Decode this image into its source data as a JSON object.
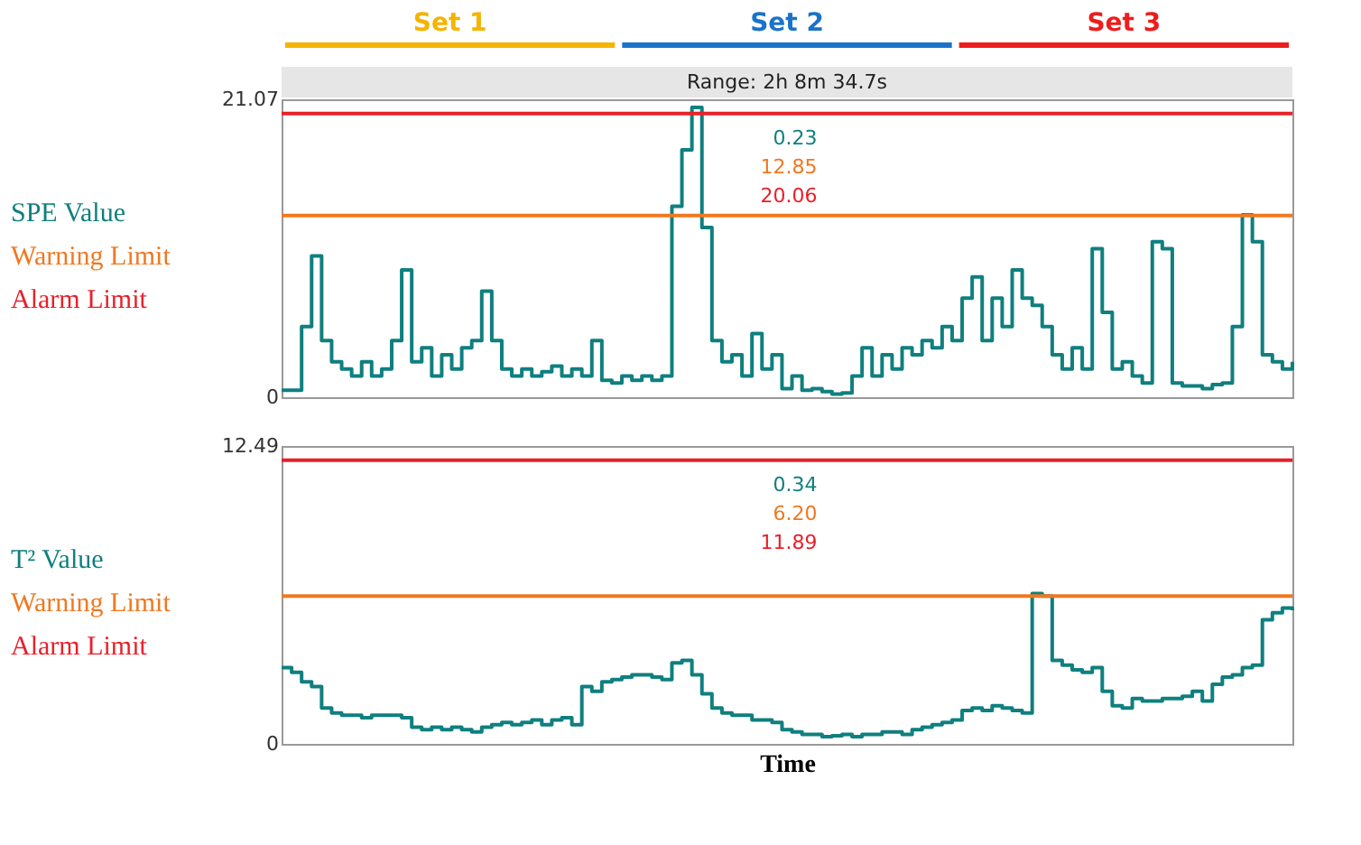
{
  "chart_data": [
    {
      "type": "step",
      "subtitle": "Range: 2h 8m 34.7s",
      "ylim": [
        0,
        21.07
      ],
      "yticks": [
        0,
        21.07
      ],
      "tick_labels": "y",
      "grid": false,
      "categories": [
        null,
        null,
        null,
        null,
        null,
        null,
        null,
        null,
        null,
        null,
        null,
        null,
        null,
        null,
        null,
        null,
        null,
        null,
        null,
        null,
        null,
        null,
        null,
        null,
        null,
        null,
        null,
        null,
        null,
        null,
        null,
        null,
        null,
        null,
        null,
        null,
        null,
        null,
        null,
        null,
        null,
        null,
        null,
        null,
        null,
        null,
        null,
        null,
        null,
        null,
        null,
        null,
        null,
        null,
        null,
        null,
        null,
        null,
        null,
        null,
        null,
        null,
        null,
        null,
        null,
        null,
        null,
        null,
        null,
        null,
        null,
        null,
        null,
        null,
        null,
        null,
        null,
        null,
        null,
        null,
        null,
        null,
        null,
        null,
        null,
        null,
        null,
        null,
        null,
        null,
        null,
        null,
        null,
        null,
        null,
        null,
        null,
        null,
        null,
        null,
        null,
        null
      ],
      "series": [
        {
          "name": "SPE Value",
          "color": "#0f7f7f",
          "values": [
            0.5,
            0.5,
            5,
            10,
            4,
            2.5,
            2,
            1.5,
            2.5,
            1.5,
            2,
            4,
            9,
            2.5,
            3.5,
            1.5,
            3,
            2,
            3.5,
            4,
            7.5,
            4,
            2,
            1.5,
            2,
            1.5,
            1.8,
            2.2,
            1.5,
            2,
            1.5,
            4,
            1.2,
            1,
            1.5,
            1.2,
            1.5,
            1.2,
            1.5,
            13.5,
            17.5,
            20.5,
            12,
            4,
            2.5,
            3,
            1.5,
            4.5,
            2,
            3,
            0.6,
            1.5,
            0.5,
            0.6,
            0.4,
            0.23,
            0.3,
            1.5,
            3.5,
            1.5,
            3,
            2,
            3.5,
            3,
            4,
            3.5,
            5,
            4,
            7,
            8.5,
            4,
            7,
            5,
            9,
            7,
            6.5,
            5,
            3,
            2,
            3.5,
            2,
            10.5,
            6,
            2,
            2.5,
            1.5,
            1,
            11,
            10.5,
            1,
            0.8,
            0.8,
            0.6,
            0.9,
            1,
            5,
            12.9,
            11,
            3,
            2.5,
            2,
            2.5
          ]
        }
      ],
      "ref_lines": [
        {
          "axis": "y",
          "value": 12.85,
          "label": "Warning Limit",
          "color": "#f07820"
        },
        {
          "axis": "y",
          "value": 20.06,
          "label": "Alarm Limit",
          "color": "#e8202a"
        }
      ],
      "annotations": [
        "0.23",
        "12.85",
        "20.06",
        "Set 1",
        "Set 2",
        "Set 3"
      ]
    },
    {
      "type": "step",
      "xlabel": "Time",
      "ylim": [
        0,
        12.49
      ],
      "yticks": [
        0,
        12.49
      ],
      "tick_labels": "y",
      "grid": false,
      "categories": [
        null,
        null,
        null,
        null,
        null,
        null,
        null,
        null,
        null,
        null,
        null,
        null,
        null,
        null,
        null,
        null,
        null,
        null,
        null,
        null,
        null,
        null,
        null,
        null,
        null,
        null,
        null,
        null,
        null,
        null,
        null,
        null,
        null,
        null,
        null,
        null,
        null,
        null,
        null,
        null,
        null,
        null,
        null,
        null,
        null,
        null,
        null,
        null,
        null,
        null,
        null,
        null,
        null,
        null,
        null,
        null,
        null,
        null,
        null,
        null,
        null,
        null,
        null,
        null,
        null,
        null,
        null,
        null,
        null,
        null,
        null,
        null,
        null,
        null,
        null,
        null,
        null,
        null,
        null,
        null,
        null,
        null,
        null,
        null,
        null,
        null,
        null,
        null,
        null,
        null,
        null,
        null,
        null,
        null,
        null,
        null,
        null,
        null,
        null,
        null,
        null,
        null
      ],
      "series": [
        {
          "name": "T² Value",
          "color": "#0f7f7f",
          "values": [
            3.2,
            3.0,
            2.6,
            2.4,
            1.5,
            1.3,
            1.2,
            1.2,
            1.1,
            1.2,
            1.2,
            1.2,
            1.1,
            0.7,
            0.6,
            0.7,
            0.6,
            0.7,
            0.6,
            0.5,
            0.7,
            0.8,
            0.9,
            0.8,
            0.9,
            1.0,
            0.8,
            1.0,
            1.1,
            0.8,
            2.4,
            2.2,
            2.6,
            2.7,
            2.8,
            2.9,
            2.9,
            2.8,
            2.7,
            3.4,
            3.5,
            2.9,
            2.1,
            1.5,
            1.3,
            1.2,
            1.2,
            1.0,
            1.0,
            0.9,
            0.6,
            0.5,
            0.4,
            0.4,
            0.3,
            0.34,
            0.4,
            0.3,
            0.4,
            0.4,
            0.5,
            0.5,
            0.4,
            0.6,
            0.7,
            0.8,
            0.9,
            1.0,
            1.4,
            1.5,
            1.4,
            1.6,
            1.5,
            1.4,
            1.3,
            6.3,
            6.2,
            3.5,
            3.3,
            3.1,
            3.0,
            3.2,
            2.2,
            1.6,
            1.5,
            1.9,
            1.8,
            1.8,
            1.9,
            1.9,
            2.0,
            2.2,
            1.8,
            2.5,
            2.8,
            2.9,
            3.2,
            3.3,
            5.2,
            5.5,
            5.7,
            5.6
          ]
        }
      ],
      "ref_lines": [
        {
          "axis": "y",
          "value": 6.2,
          "label": "Warning Limit",
          "color": "#f07820"
        },
        {
          "axis": "y",
          "value": 11.89,
          "label": "Alarm Limit",
          "color": "#e8202a"
        }
      ],
      "annotations": [
        "0.34",
        "6.20",
        "11.89"
      ]
    }
  ]
}
